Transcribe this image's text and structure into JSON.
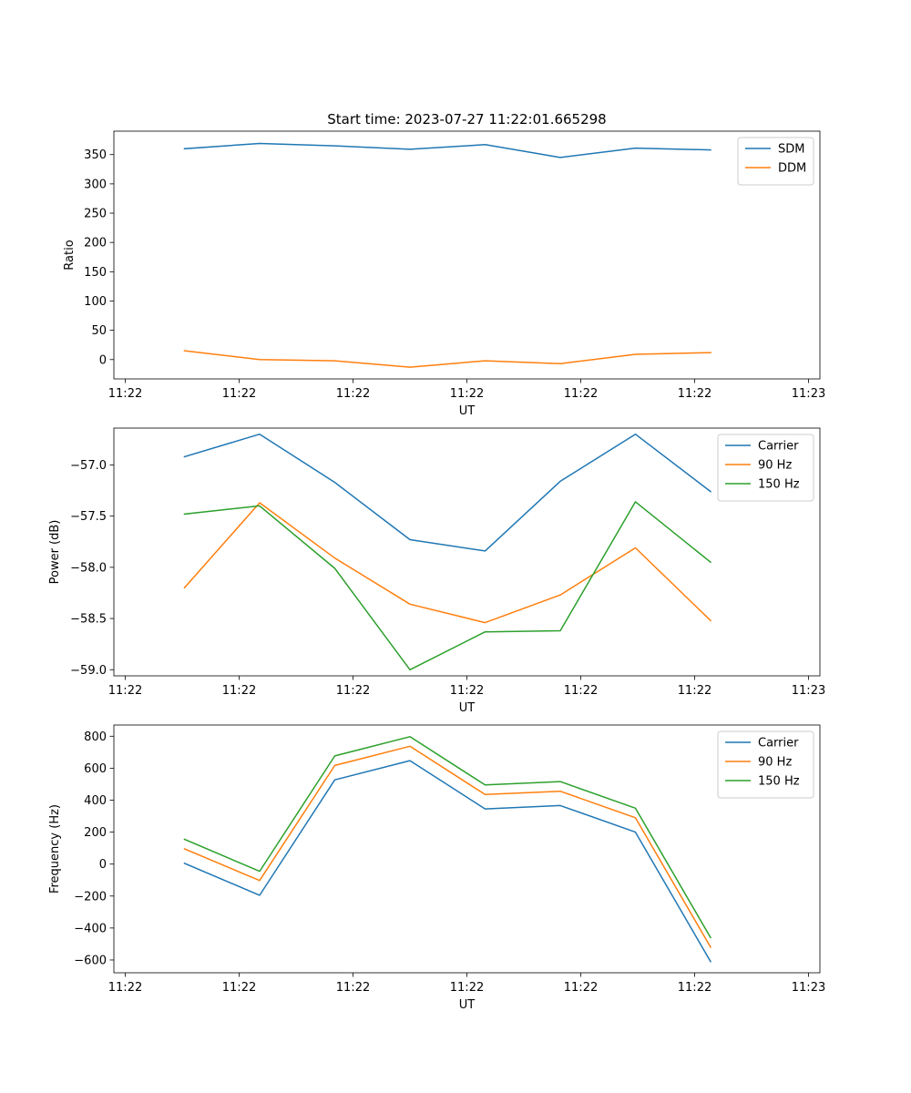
{
  "chart_data": [
    {
      "type": "line",
      "title": "Start time: 2023-07-27 11:22:01.665298",
      "xlabel": "UT",
      "ylabel": "Ratio",
      "xlim": [
        0,
        6.2
      ],
      "ylim": [
        -33,
        390
      ],
      "x_ticks": [
        0.1,
        1.1,
        2.1,
        3.1,
        4.1,
        5.1,
        6.1
      ],
      "x_tick_labels": [
        "11:22",
        "11:22",
        "11:22",
        "11:22",
        "11:22",
        "11:22",
        "11:23"
      ],
      "y_ticks": [
        0,
        50,
        100,
        150,
        200,
        250,
        300,
        350
      ],
      "y_tick_labels": [
        "0",
        "50",
        "100",
        "150",
        "200",
        "250",
        "300",
        "350"
      ],
      "legend_position": "top-right",
      "x": [
        0.62,
        1.28,
        1.94,
        2.6,
        3.26,
        3.92,
        4.58,
        5.24
      ],
      "series": [
        {
          "name": "SDM",
          "color": "#1f77b4",
          "values": [
            360,
            369,
            365,
            359,
            367,
            345,
            361,
            358
          ]
        },
        {
          "name": "DDM",
          "color": "#ff7f0e",
          "values": [
            15,
            0,
            -2,
            -13,
            -2,
            -7,
            9,
            12
          ]
        }
      ]
    },
    {
      "type": "line",
      "title": "",
      "xlabel": "UT",
      "ylabel": "Power (dB)",
      "xlim": [
        0,
        6.2
      ],
      "ylim": [
        -59.06,
        -56.64
      ],
      "x_ticks": [
        0.1,
        1.1,
        2.1,
        3.1,
        4.1,
        5.1,
        6.1
      ],
      "x_tick_labels": [
        "11:22",
        "11:22",
        "11:22",
        "11:22",
        "11:22",
        "11:22",
        "11:23"
      ],
      "y_ticks": [
        -59.0,
        -58.5,
        -58.0,
        -57.5,
        -57.0
      ],
      "y_tick_labels": [
        "−59.0",
        "−58.5",
        "−58.0",
        "−57.5",
        "−57.0"
      ],
      "legend_position": "top-right",
      "x": [
        0.62,
        1.28,
        1.94,
        2.6,
        3.26,
        3.92,
        4.58,
        5.24
      ],
      "series": [
        {
          "name": "Carrier",
          "color": "#1f77b4",
          "values": [
            -56.92,
            -56.7,
            -57.17,
            -57.73,
            -57.84,
            -57.16,
            -56.7,
            -57.26
          ]
        },
        {
          "name": "90 Hz",
          "color": "#ff7f0e",
          "values": [
            -58.2,
            -57.37,
            -57.91,
            -58.36,
            -58.54,
            -58.27,
            -57.81,
            -58.52
          ]
        },
        {
          "name": "150 Hz",
          "color": "#2ca02c",
          "values": [
            -57.48,
            -57.4,
            -58.01,
            -59.0,
            -58.63,
            -58.62,
            -57.36,
            -57.95
          ]
        }
      ]
    },
    {
      "type": "line",
      "title": "",
      "xlabel": "UT",
      "ylabel": "Frequency (Hz)",
      "xlim": [
        0,
        6.2
      ],
      "ylim": [
        -680,
        870
      ],
      "x_ticks": [
        0.1,
        1.1,
        2.1,
        3.1,
        4.1,
        5.1,
        6.1
      ],
      "x_tick_labels": [
        "11:22",
        "11:22",
        "11:22",
        "11:22",
        "11:22",
        "11:22",
        "11:23"
      ],
      "y_ticks": [
        -600,
        -400,
        -200,
        0,
        200,
        400,
        600,
        800
      ],
      "y_tick_labels": [
        "−600",
        "−400",
        "−200",
        "0",
        "200",
        "400",
        "600",
        "800"
      ],
      "legend_position": "top-right",
      "x": [
        0.62,
        1.28,
        1.94,
        2.6,
        3.26,
        3.92,
        4.58,
        5.24
      ],
      "series": [
        {
          "name": "Carrier",
          "color": "#1f77b4",
          "values": [
            5,
            -195,
            527,
            647,
            345,
            366,
            200,
            -610
          ]
        },
        {
          "name": "90 Hz",
          "color": "#ff7f0e",
          "values": [
            95,
            -103,
            617,
            737,
            435,
            456,
            290,
            -520
          ]
        },
        {
          "name": "150 Hz",
          "color": "#2ca02c",
          "values": [
            155,
            -45,
            677,
            797,
            495,
            516,
            350,
            -460
          ]
        }
      ]
    }
  ]
}
